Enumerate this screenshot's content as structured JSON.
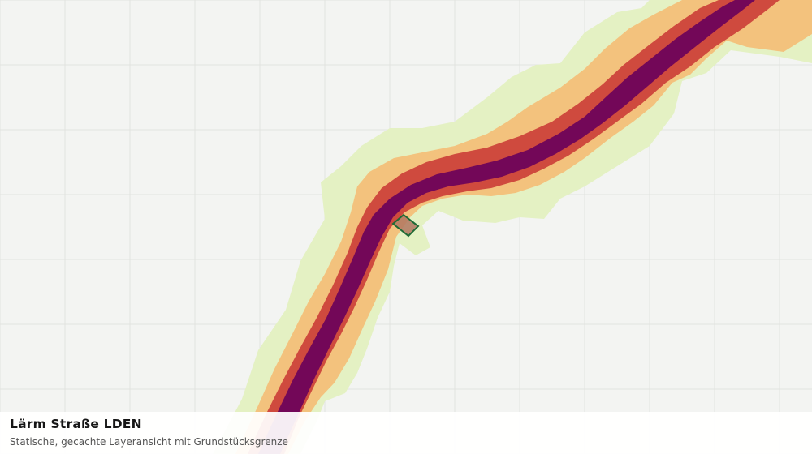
{
  "caption": {
    "title": "Lärm Straße LDEN",
    "subtitle": "Statische, gecachte Layeransicht mit Grundstücksgrenze"
  },
  "colors": {
    "background": "#f3f4f2",
    "grid": "#e2e3e0",
    "noise_low": "#e4f1c3",
    "noise_mid": "#f3c27d",
    "noise_high": "#cf4a3e",
    "noise_max": "#730758",
    "parcel_fill": "#b07760",
    "parcel_stroke": "#1f6b36"
  },
  "legend_layers": [
    "noise-zone-low",
    "noise-zone-mid",
    "noise-zone-high",
    "noise-zone-max"
  ]
}
